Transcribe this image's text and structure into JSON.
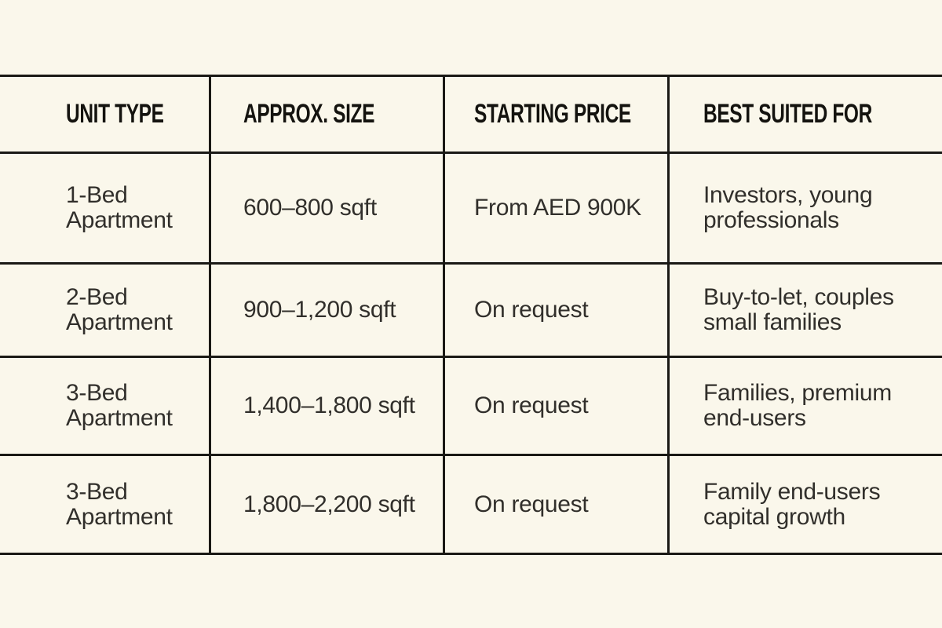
{
  "colors": {
    "background": "#FAF7EB",
    "grid_line": "#1A1915",
    "header_text": "#14130F",
    "body_text": "#312F2B"
  },
  "table": {
    "columns": [
      {
        "label": "UNIT TYPE"
      },
      {
        "label": "APPROX. SIZE"
      },
      {
        "label": "STARTING PRICE"
      },
      {
        "label": "BEST SUITED FOR"
      }
    ],
    "rows": [
      {
        "unit_type": "1-Bed\nApartment",
        "approx_size": "600–800 sqft",
        "starting_price": "From AED 900K",
        "best_suited_for": "Investors, young\nprofessionals"
      },
      {
        "unit_type": "2-Bed\nApartment",
        "approx_size": "900–1,200 sqft",
        "starting_price": "On request",
        "best_suited_for": "Buy-to-let, couples\nsmall families"
      },
      {
        "unit_type": "3-Bed\nApartment",
        "approx_size": "1,400–1,800 sqft",
        "starting_price": "On request",
        "best_suited_for": "Families, premium\nend-users"
      },
      {
        "unit_type": "3-Bed\nApartment",
        "approx_size": "1,800–2,200 sqft",
        "starting_price": "On request",
        "best_suited_for": "Family end-users\ncapital growth"
      }
    ]
  }
}
